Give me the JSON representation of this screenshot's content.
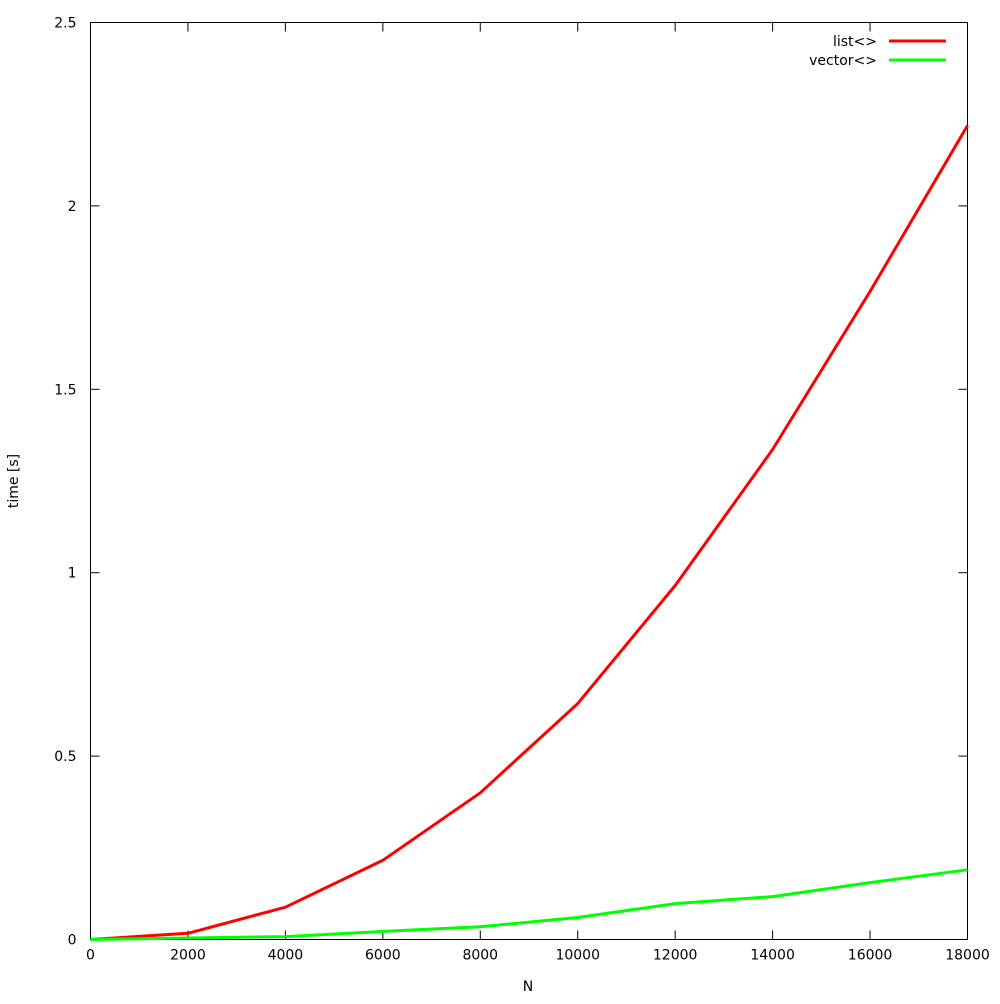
{
  "chart_data": {
    "type": "line",
    "title": "",
    "xlabel": "N",
    "ylabel": "time [s]",
    "xlim": [
      0,
      18000
    ],
    "ylim": [
      0,
      2.5
    ],
    "xticks": [
      0,
      2000,
      4000,
      6000,
      8000,
      10000,
      12000,
      14000,
      16000,
      18000
    ],
    "yticks": [
      0,
      0.5,
      1,
      1.5,
      2,
      2.5
    ],
    "xtick_labels": [
      "0",
      "2000",
      "4000",
      "6000",
      "8000",
      "10000",
      "12000",
      "14000",
      "16000",
      "18000"
    ],
    "ytick_labels": [
      "0",
      "0.5",
      "1",
      "1.5",
      "2",
      "2.5"
    ],
    "grid": false,
    "legend_position": "top-right",
    "x": [
      0,
      2000,
      4000,
      6000,
      8000,
      10000,
      12000,
      14000,
      16000,
      18000
    ],
    "series": [
      {
        "name": "list<>",
        "color": "#ff0000",
        "values": [
          0.0,
          0.017,
          0.088,
          0.216,
          0.4,
          0.643,
          0.965,
          1.336,
          1.767,
          2.219
        ]
      },
      {
        "name": "vector<>",
        "color": "#00ff00",
        "values": [
          0.0,
          0.004,
          0.008,
          0.022,
          0.035,
          0.06,
          0.098,
          0.117,
          0.155,
          0.19
        ]
      }
    ]
  }
}
